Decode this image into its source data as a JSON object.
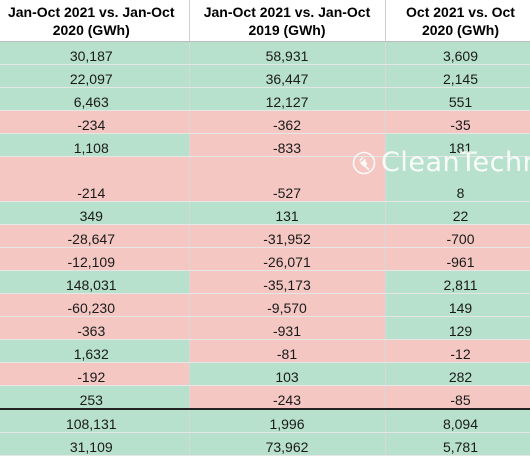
{
  "table": {
    "headers": [
      "Jan-Oct 2021 vs. Jan-Oct 2020 (GWh)",
      "Jan-Oct 2021 vs. Jan-Oct 2019 (GWh)",
      "Oct 2021 vs. Oct 2020 (GWh)"
    ],
    "rows": [
      {
        "cells": [
          "30,187",
          "58,931",
          "3,609"
        ],
        "status": [
          "pos",
          "pos",
          "pos"
        ],
        "tall": false
      },
      {
        "cells": [
          "22,097",
          "36,447",
          "2,145"
        ],
        "status": [
          "pos",
          "pos",
          "pos"
        ],
        "tall": false
      },
      {
        "cells": [
          "6,463",
          "12,127",
          "551"
        ],
        "status": [
          "pos",
          "pos",
          "pos"
        ],
        "tall": false
      },
      {
        "cells": [
          "-234",
          "-362",
          "-35"
        ],
        "status": [
          "neg",
          "neg",
          "neg"
        ],
        "tall": false
      },
      {
        "cells": [
          "1,108",
          "-833",
          "181"
        ],
        "status": [
          "pos",
          "neg",
          "pos"
        ],
        "tall": false
      },
      {
        "cells": [
          "-214",
          "-527",
          "8"
        ],
        "status": [
          "neg",
          "neg",
          "pos"
        ],
        "tall": true
      },
      {
        "cells": [
          "349",
          "131",
          "22"
        ],
        "status": [
          "pos",
          "pos",
          "pos"
        ],
        "tall": false
      },
      {
        "cells": [
          "-28,647",
          "-31,952",
          "-700"
        ],
        "status": [
          "neg",
          "neg",
          "neg"
        ],
        "tall": false
      },
      {
        "cells": [
          "-12,109",
          "-26,071",
          "-961"
        ],
        "status": [
          "neg",
          "neg",
          "neg"
        ],
        "tall": false
      },
      {
        "cells": [
          "148,031",
          "-35,173",
          "2,811"
        ],
        "status": [
          "pos",
          "neg",
          "pos"
        ],
        "tall": false
      },
      {
        "cells": [
          "-60,230",
          "-9,570",
          "149"
        ],
        "status": [
          "neg",
          "neg",
          "pos"
        ],
        "tall": false
      },
      {
        "cells": [
          "-363",
          "-931",
          "129"
        ],
        "status": [
          "neg",
          "neg",
          "pos"
        ],
        "tall": false
      },
      {
        "cells": [
          "1,632",
          "-81",
          "-12"
        ],
        "status": [
          "pos",
          "neg",
          "neg"
        ],
        "tall": false
      },
      {
        "cells": [
          "-192",
          "103",
          "282"
        ],
        "status": [
          "neg",
          "pos",
          "pos"
        ],
        "tall": false
      },
      {
        "cells": [
          "253",
          "-243",
          "-85"
        ],
        "status": [
          "pos",
          "neg",
          "neg"
        ],
        "tall": false
      }
    ],
    "totals": [
      {
        "cells": [
          "108,131",
          "1,996",
          "8,094"
        ],
        "status": [
          "pos",
          "pos",
          "pos"
        ]
      },
      {
        "cells": [
          "31,109",
          "73,962",
          "5,781"
        ],
        "status": [
          "pos",
          "pos",
          "pos"
        ]
      }
    ]
  },
  "watermark": {
    "text": "CleanTechn",
    "icon": "plug-icon"
  },
  "colors": {
    "positive": "#b7e1cd",
    "negative": "#f4c7c3",
    "header_bg": "#ffffff"
  }
}
